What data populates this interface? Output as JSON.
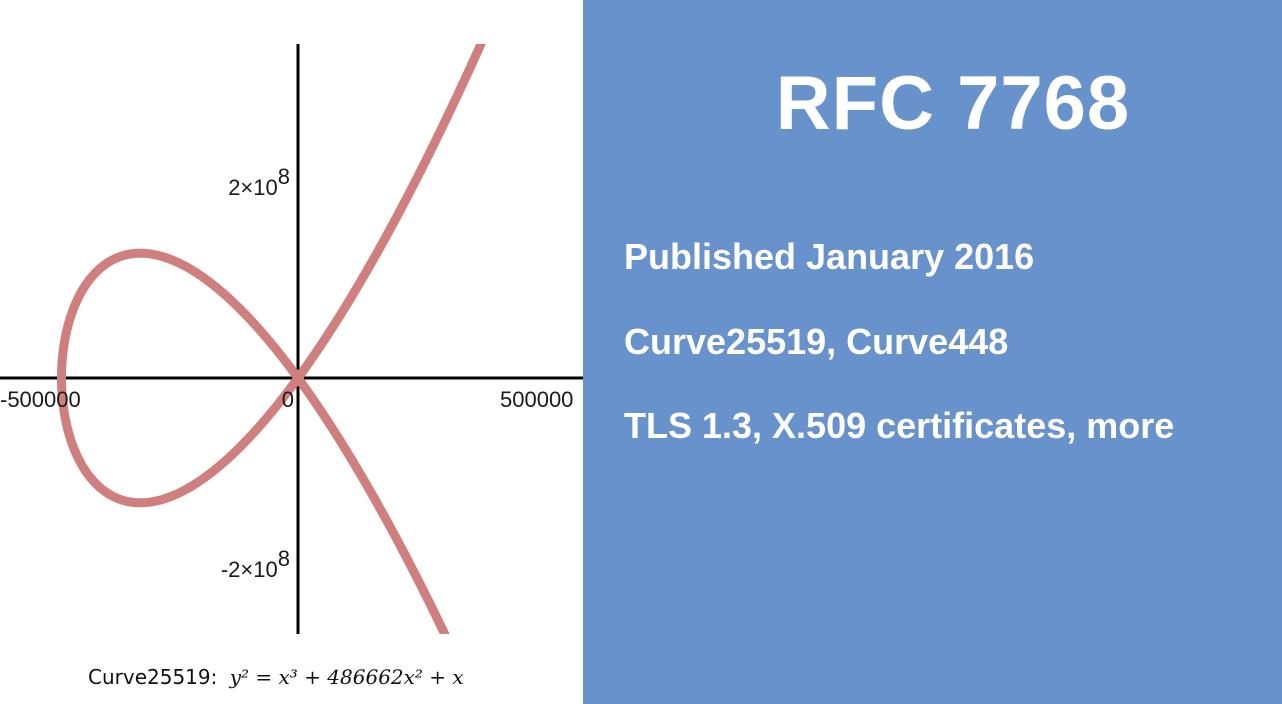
{
  "chart_data": {
    "type": "line",
    "equation": "y^2 = x^3 + 486662x^2 + x",
    "series": [
      {
        "values": [
          [
            -486662,
            0
          ],
          [
            -450000,
            98000000
          ],
          [
            -400000,
            126000000
          ],
          [
            -324441,
            137000000
          ],
          [
            -250000,
            130000000
          ],
          [
            -150000,
            97000000
          ],
          [
            -50000,
            42000000
          ],
          [
            0,
            0
          ],
          [
            50000,
            40000000
          ],
          [
            100000,
            76000000
          ],
          [
            200000,
            163000000
          ],
          [
            300000,
            265000000
          ],
          [
            360000,
            336000000
          ]
        ]
      }
    ],
    "xlim": [
      -510000,
      610000
    ],
    "ylim": [
      -340000000,
      350000000
    ],
    "x_ticks": [
      {
        "value": -500000,
        "label": "-500000"
      },
      {
        "value": 0,
        "label": "0"
      },
      {
        "value": 500000,
        "label": "500000"
      }
    ],
    "y_ticks": [
      {
        "value": 200000000,
        "label": "2×10",
        "exp": "8"
      },
      {
        "value": -200000000,
        "label": "-2×10",
        "exp": "8"
      }
    ],
    "colors": {
      "curve": "#d07f7f",
      "axes": "#000000"
    }
  },
  "caption": {
    "name": "Curve25519:",
    "formula": "y² = x³ + 486662x² + x"
  },
  "slide": {
    "background": "#6792cb",
    "title": "RFC 7768",
    "bullets": [
      "Published January 2016",
      "Curve25519, Curve448",
      "TLS 1.3, X.509 certificates, more"
    ]
  }
}
